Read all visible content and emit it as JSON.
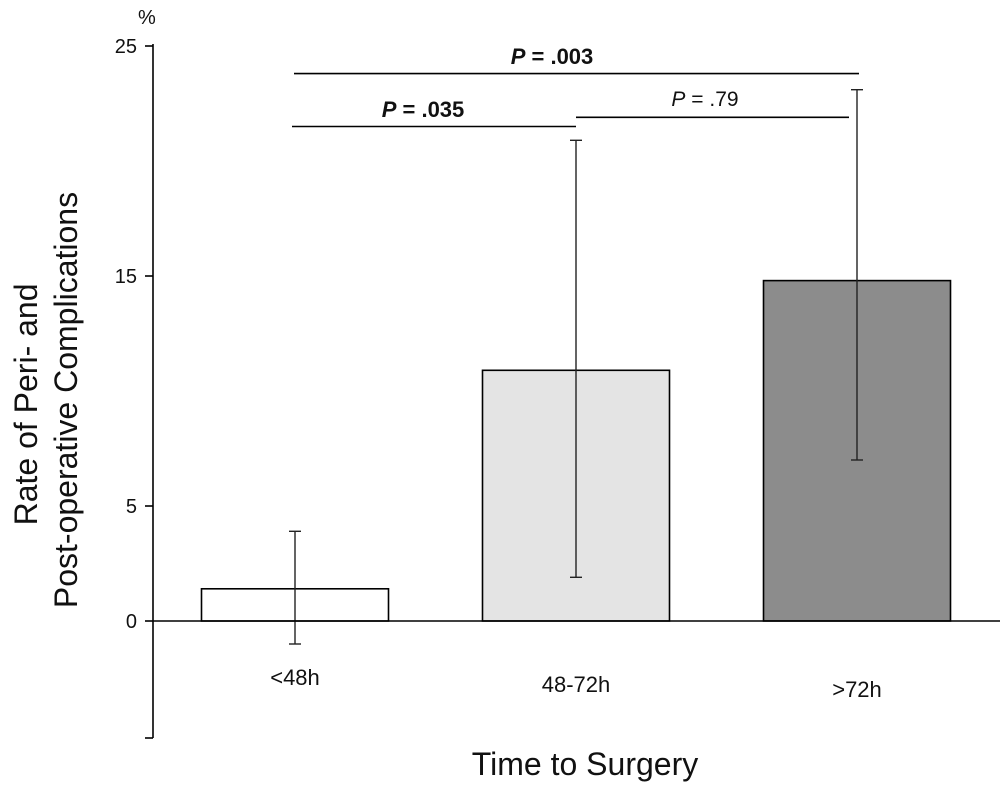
{
  "chart_data": {
    "type": "bar",
    "title": "",
    "xlabel": "Time to Surgery",
    "ylabel_lines": [
      "Rate of Peri- and",
      "Post-operative Complications"
    ],
    "y_unit": "%",
    "ylim": [
      -5,
      25
    ],
    "y_ticks": [
      0,
      5,
      15,
      25
    ],
    "grid": false,
    "categories": [
      "<48h",
      "48-72h",
      ">72h"
    ],
    "values": [
      1.4,
      10.9,
      14.8
    ],
    "error_low": [
      -1.0,
      1.9,
      7.0
    ],
    "error_high": [
      3.9,
      20.9,
      23.1
    ],
    "bar_colors": [
      "#ffffff",
      "#e4e4e4",
      "#8c8c8c"
    ],
    "comparisons": [
      {
        "from": 0,
        "to": 2,
        "y": 23.8,
        "letter": "P",
        "text": " = .003",
        "bold": true
      },
      {
        "from": 0,
        "to": 1,
        "y": 21.5,
        "letter": "P",
        "text": " = .035",
        "bold": true
      },
      {
        "from": 1,
        "to": 2,
        "y": 21.9,
        "letter": "P",
        "text": " = .79",
        "bold": false
      }
    ]
  }
}
